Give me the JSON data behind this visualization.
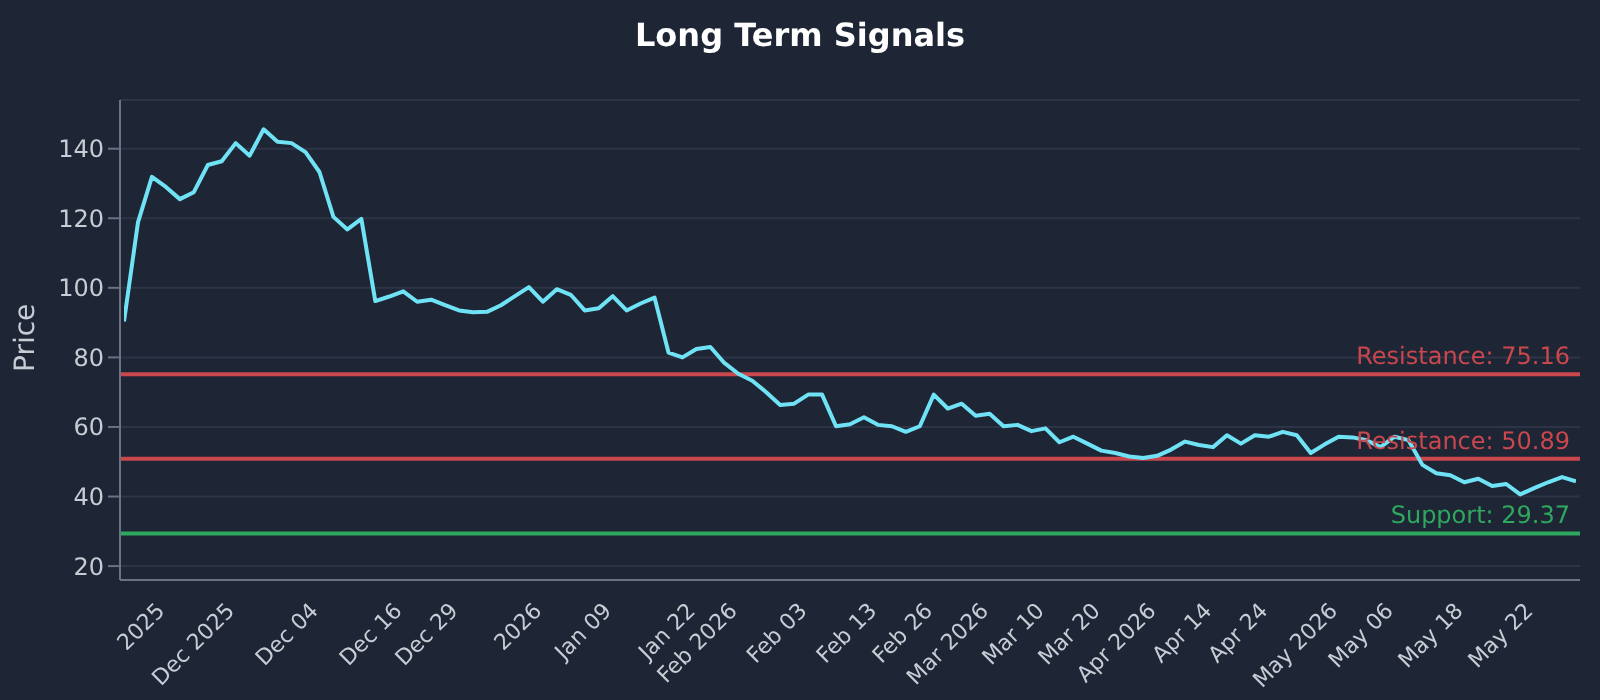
{
  "chart_data": {
    "type": "line",
    "title": "Long Term Signals",
    "ylabel": "Price",
    "categories": [
      null,
      null,
      null,
      "2025",
      null,
      null,
      null,
      null,
      "Dec 2025",
      null,
      null,
      null,
      null,
      null,
      "Dec 04",
      null,
      null,
      null,
      null,
      null,
      "Dec 16",
      null,
      null,
      null,
      "Dec 29",
      null,
      null,
      null,
      null,
      null,
      "2026",
      null,
      null,
      null,
      null,
      "Jan 09",
      null,
      null,
      null,
      null,
      null,
      "Jan 22",
      null,
      null,
      "Feb 2026",
      null,
      null,
      null,
      null,
      "Feb 03",
      null,
      null,
      null,
      null,
      "Feb 13",
      null,
      null,
      null,
      "Feb 26",
      null,
      null,
      null,
      "Mar 2026",
      null,
      null,
      null,
      "Mar 10",
      null,
      null,
      null,
      "Mar 20",
      null,
      null,
      null,
      "Apr 2026",
      null,
      null,
      null,
      "Apr 14",
      null,
      null,
      null,
      "Apr 24",
      null,
      null,
      null,
      null,
      "May 2026",
      null,
      null,
      null,
      "May 06",
      null,
      null,
      null,
      null,
      "May 18",
      null,
      null,
      null,
      null,
      "May 22",
      null,
      null,
      null
    ],
    "series": [
      {
        "color": "#6fe3f5",
        "values": [
          90.3,
          118.8,
          131.9,
          129,
          125.5,
          127.5,
          135.3,
          136.4,
          141.6,
          138,
          145.6,
          142,
          141.6,
          139,
          133.3,
          120.4,
          116.8,
          119.8,
          96.2,
          97.5,
          99,
          96,
          96.6,
          95,
          93.5,
          93,
          93.1,
          95,
          97.6,
          100.2,
          96,
          99.6,
          98,
          93.5,
          94.1,
          97.6,
          93.5,
          95.5,
          97.2,
          81.4,
          80,
          82.4,
          83,
          78.4,
          75.3,
          73.3,
          70,
          66.3,
          66.7,
          69.3,
          69.3,
          60.2,
          60.8,
          62.8,
          60.6,
          60.2,
          58.6,
          60.2,
          69.3,
          65.3,
          66.7,
          63.2,
          63.8,
          60.2,
          60.6,
          58.8,
          59.6,
          55.6,
          57.2,
          55.2,
          53.2,
          52.5,
          51.5,
          51.1,
          51.7,
          53.5,
          55.8,
          54.8,
          54.2,
          57.6,
          55.2,
          57.6,
          57.2,
          58.6,
          57.6,
          52.5,
          55,
          57.2,
          57,
          56.2,
          54.2,
          57.2,
          56.2,
          49.1,
          46.7,
          46.1,
          44.1,
          45.1,
          43,
          43.6,
          40.6,
          42.4,
          44.1,
          45.6,
          44.4
        ]
      }
    ],
    "ylim": [
      16,
      154
    ],
    "yticks": [
      20,
      40,
      60,
      80,
      100,
      120,
      140
    ],
    "grid": "y",
    "legend": false,
    "marker": "none",
    "line_style": "solid",
    "ref_lines": [
      {
        "axis": "y",
        "value": 75.16,
        "label": "Resistance: 75.16",
        "color": "#c9474d"
      },
      {
        "axis": "y",
        "value": 50.89,
        "label": "Resistance: 50.89",
        "color": "#c9474d"
      },
      {
        "axis": "y",
        "value": 29.37,
        "label": "Support: 29.37",
        "color": "#2fa85f"
      }
    ]
  }
}
